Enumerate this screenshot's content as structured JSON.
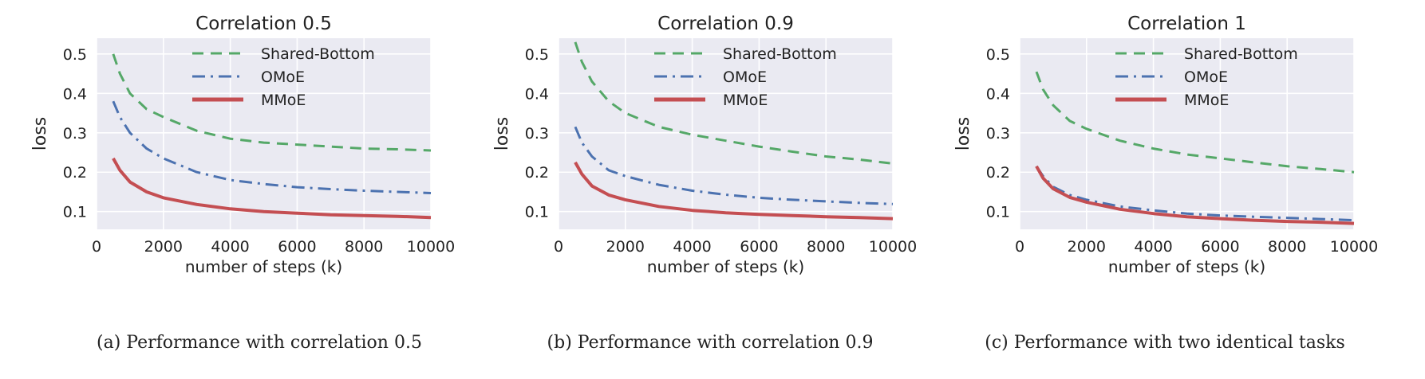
{
  "chart_data": [
    {
      "type": "line",
      "title": "Correlation 0.5",
      "xlabel": "number of steps (k)",
      "ylabel": "loss",
      "xlim": [
        0,
        10000
      ],
      "ylim": [
        0.055,
        0.54
      ],
      "xticks": [
        0,
        2000,
        4000,
        6000,
        8000,
        10000
      ],
      "yticks": [
        0.1,
        0.2,
        0.3,
        0.4,
        0.5
      ],
      "grid": true,
      "legend": "top-right",
      "caption": "(a) Performance with correlation 0.5",
      "series": [
        {
          "name": "Shared-Bottom",
          "color": "#55a868",
          "style": "dashed",
          "x": [
            500,
            700,
            1000,
            1500,
            2000,
            3000,
            4000,
            5000,
            6000,
            7000,
            8000,
            9000,
            10000
          ],
          "y": [
            0.5,
            0.45,
            0.4,
            0.36,
            0.34,
            0.305,
            0.285,
            0.275,
            0.27,
            0.265,
            0.26,
            0.258,
            0.255
          ]
        },
        {
          "name": "OMoE",
          "color": "#4c72b0",
          "style": "dashdot",
          "x": [
            500,
            700,
            1000,
            1500,
            2000,
            3000,
            4000,
            5000,
            6000,
            7000,
            8000,
            9000,
            10000
          ],
          "y": [
            0.38,
            0.34,
            0.3,
            0.26,
            0.235,
            0.2,
            0.18,
            0.17,
            0.162,
            0.157,
            0.153,
            0.15,
            0.147
          ]
        },
        {
          "name": "MMoE",
          "color": "#c44e52",
          "style": "solid",
          "x": [
            500,
            700,
            1000,
            1500,
            2000,
            3000,
            4000,
            5000,
            6000,
            7000,
            8000,
            9000,
            10000
          ],
          "y": [
            0.235,
            0.205,
            0.175,
            0.15,
            0.135,
            0.118,
            0.107,
            0.1,
            0.096,
            0.092,
            0.09,
            0.088,
            0.085
          ]
        }
      ]
    },
    {
      "type": "line",
      "title": "Correlation 0.9",
      "xlabel": "number of steps (k)",
      "ylabel": "loss",
      "xlim": [
        0,
        10000
      ],
      "ylim": [
        0.055,
        0.54
      ],
      "xticks": [
        0,
        2000,
        4000,
        6000,
        8000,
        10000
      ],
      "yticks": [
        0.1,
        0.2,
        0.3,
        0.4,
        0.5
      ],
      "grid": true,
      "legend": "top-right",
      "caption": "(b) Performance with correlation 0.9",
      "series": [
        {
          "name": "Shared-Bottom",
          "color": "#55a868",
          "style": "dashed",
          "x": [
            500,
            700,
            1000,
            1500,
            2000,
            3000,
            4000,
            5000,
            6000,
            7000,
            8000,
            9000,
            10000
          ],
          "y": [
            0.53,
            0.48,
            0.43,
            0.38,
            0.35,
            0.315,
            0.295,
            0.28,
            0.265,
            0.252,
            0.24,
            0.232,
            0.222
          ]
        },
        {
          "name": "OMoE",
          "color": "#4c72b0",
          "style": "dashdot",
          "x": [
            500,
            700,
            1000,
            1500,
            2000,
            3000,
            4000,
            5000,
            6000,
            7000,
            8000,
            9000,
            10000
          ],
          "y": [
            0.315,
            0.275,
            0.24,
            0.205,
            0.19,
            0.168,
            0.153,
            0.143,
            0.135,
            0.13,
            0.126,
            0.122,
            0.119
          ]
        },
        {
          "name": "MMoE",
          "color": "#c44e52",
          "style": "solid",
          "x": [
            500,
            700,
            1000,
            1500,
            2000,
            3000,
            4000,
            5000,
            6000,
            7000,
            8000,
            9000,
            10000
          ],
          "y": [
            0.225,
            0.195,
            0.165,
            0.142,
            0.13,
            0.113,
            0.103,
            0.097,
            0.093,
            0.09,
            0.087,
            0.085,
            0.082
          ]
        }
      ]
    },
    {
      "type": "line",
      "title": "Correlation 1",
      "xlabel": "number of steps (k)",
      "ylabel": "loss",
      "xlim": [
        0,
        10000
      ],
      "ylim": [
        0.055,
        0.54
      ],
      "xticks": [
        0,
        2000,
        4000,
        6000,
        8000,
        10000
      ],
      "yticks": [
        0.1,
        0.2,
        0.3,
        0.4,
        0.5
      ],
      "grid": true,
      "legend": "top-right",
      "caption": "(c) Performance with two identical tasks",
      "series": [
        {
          "name": "Shared-Bottom",
          "color": "#55a868",
          "style": "dashed",
          "x": [
            500,
            700,
            1000,
            1500,
            2000,
            3000,
            4000,
            5000,
            6000,
            7000,
            8000,
            9000,
            10000
          ],
          "y": [
            0.455,
            0.41,
            0.37,
            0.33,
            0.31,
            0.28,
            0.26,
            0.245,
            0.235,
            0.225,
            0.215,
            0.208,
            0.2
          ]
        },
        {
          "name": "OMoE",
          "color": "#4c72b0",
          "style": "dashdot",
          "x": [
            500,
            700,
            1000,
            1500,
            2000,
            3000,
            4000,
            5000,
            6000,
            7000,
            8000,
            9000,
            10000
          ],
          "y": [
            0.215,
            0.19,
            0.163,
            0.142,
            0.13,
            0.113,
            0.103,
            0.095,
            0.09,
            0.087,
            0.084,
            0.081,
            0.078
          ]
        },
        {
          "name": "MMoE",
          "color": "#c44e52",
          "style": "solid",
          "x": [
            500,
            700,
            1000,
            1500,
            2000,
            3000,
            4000,
            5000,
            6000,
            7000,
            8000,
            9000,
            10000
          ],
          "y": [
            0.215,
            0.185,
            0.158,
            0.136,
            0.124,
            0.106,
            0.095,
            0.087,
            0.082,
            0.078,
            0.075,
            0.073,
            0.07
          ]
        }
      ]
    }
  ]
}
